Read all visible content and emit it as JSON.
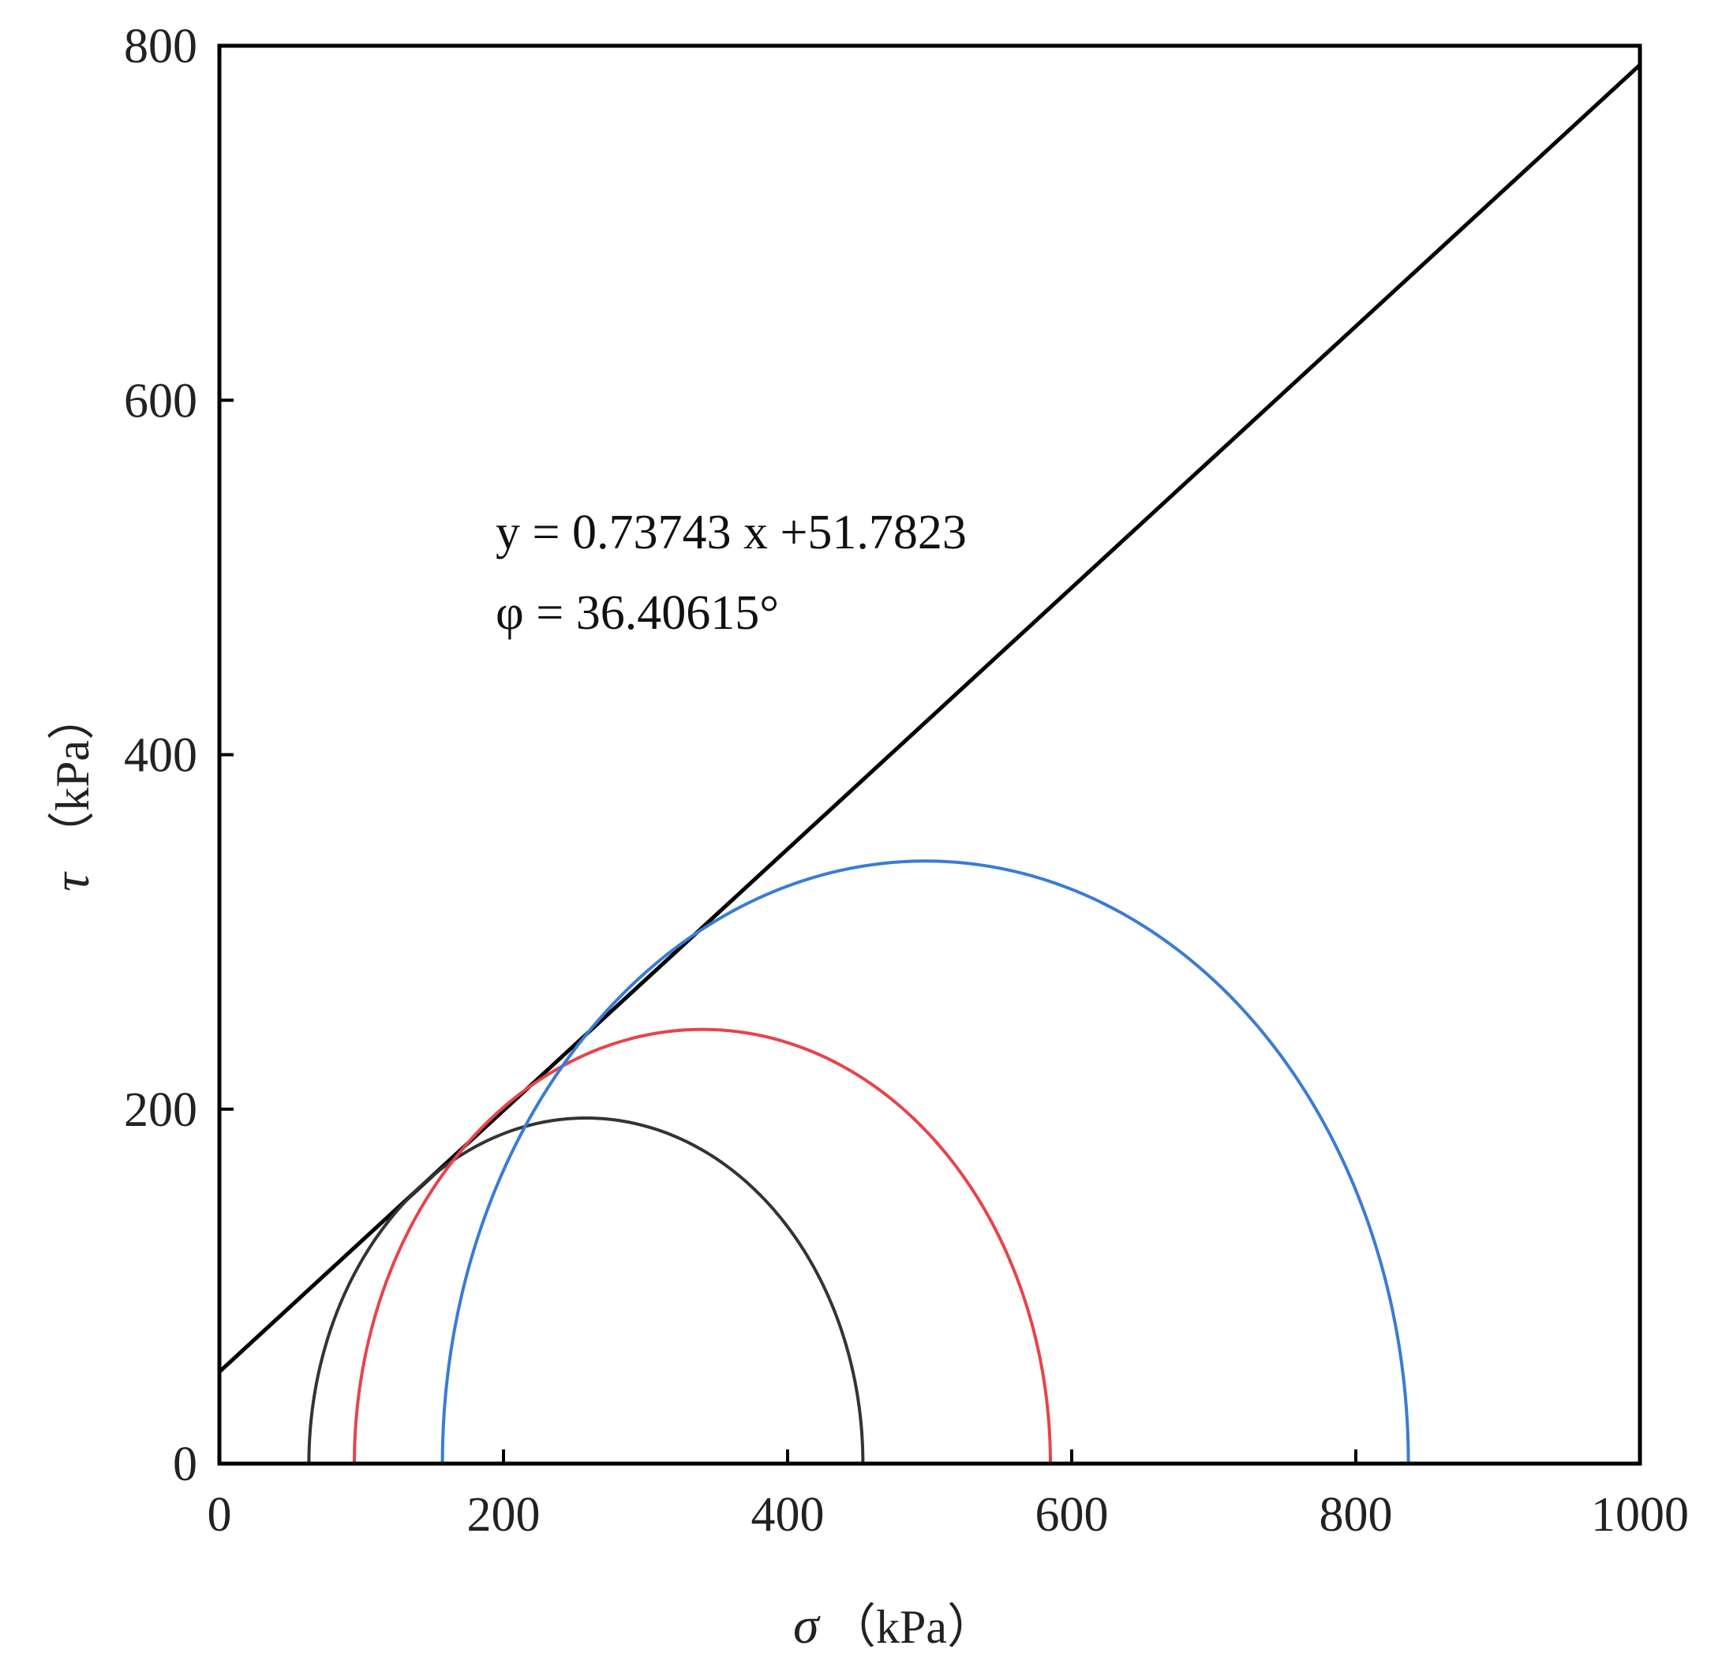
{
  "chart_data": {
    "type": "line",
    "xlim": [
      0,
      1000
    ],
    "ylim": [
      0,
      800
    ],
    "xticks": [
      0,
      200,
      400,
      600,
      800,
      1000
    ],
    "yticks": [
      0,
      200,
      400,
      600,
      800
    ],
    "xticklabels": [
      "0",
      "200",
      "400",
      "600",
      "800",
      "1000"
    ],
    "yticklabels": [
      "0",
      "200",
      "400",
      "600",
      "800"
    ],
    "xlabel": {
      "symbol": "σ",
      "unit": "（kPa）"
    },
    "ylabel": {
      "symbol": "τ",
      "unit": "（kPa）"
    },
    "grid": false,
    "legend": "none",
    "series": [
      {
        "kind": "line",
        "slope": 0.73743,
        "intercept": 51.7823,
        "x_range": [
          0,
          1000
        ],
        "color": "#000000"
      },
      {
        "kind": "mohr-circle",
        "sigma3": 63,
        "sigma1": 453,
        "color": "#333333"
      },
      {
        "kind": "mohr-circle",
        "sigma3": 95,
        "sigma1": 585,
        "color": "#e8434a"
      },
      {
        "kind": "mohr-circle",
        "sigma3": 157,
        "sigma1": 837,
        "color": "#3a7bd5"
      }
    ],
    "annotations": [
      "y = 0.73743 x +51.7823",
      "φ = 36.40615°"
    ]
  }
}
